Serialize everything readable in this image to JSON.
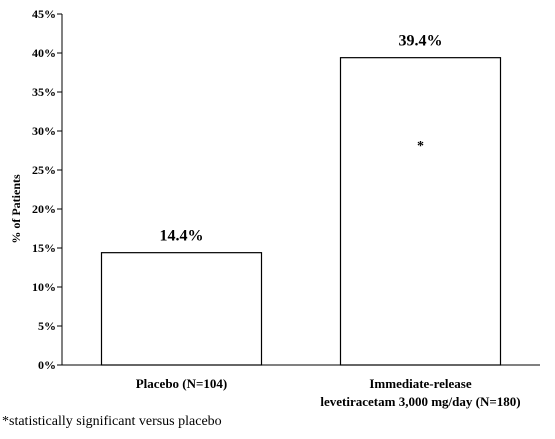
{
  "chart_data": {
    "type": "bar",
    "categories": [
      [
        "Placebo (N=104)"
      ],
      [
        "Immediate-release",
        "levetiracetam 3,000 mg/day (N=180)"
      ]
    ],
    "values": [
      14.4,
      39.4
    ],
    "data_labels": [
      "14.4%",
      "39.4%"
    ],
    "annotations": [
      "",
      "*"
    ],
    "title": "",
    "xlabel": "",
    "ylabel": "% of Patients",
    "ylim": [
      0,
      45
    ],
    "yticks": [
      0,
      5,
      10,
      15,
      20,
      25,
      30,
      35,
      40,
      45
    ],
    "ytick_labels": [
      "0%",
      "5%",
      "10%",
      "15%",
      "20%",
      "25%",
      "30%",
      "35%",
      "40%",
      "45%"
    ],
    "grid": false,
    "legend": "none"
  },
  "footnote": "*statistically significant versus placebo"
}
